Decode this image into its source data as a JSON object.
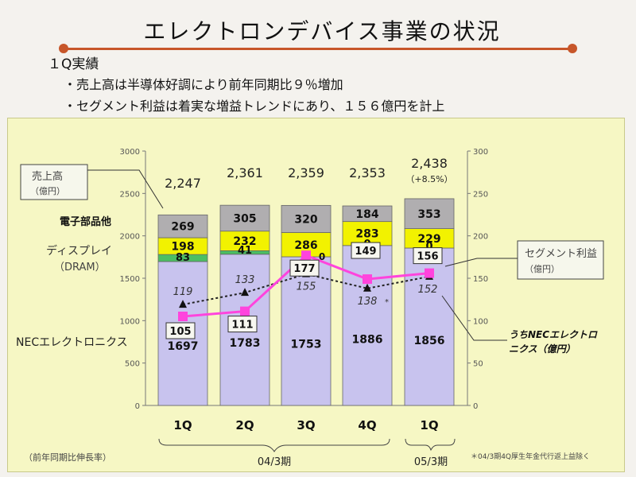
{
  "slide": {
    "title": "エレクトロンデバイス事業の状況",
    "summary_heading": "１Q実績",
    "bullets": [
      "・売上高は半導体好調により前年同期比９％増加",
      "・セグメント利益は着実な増益トレンドにあり、１５６億円を計上"
    ]
  },
  "chart_data": {
    "type": "bar",
    "stacked": true,
    "categories": [
      "1Q",
      "2Q",
      "3Q",
      "4Q",
      "1Q"
    ],
    "period_groups": [
      {
        "label": "04/3期",
        "categories": [
          "1Q",
          "2Q",
          "3Q",
          "4Q"
        ]
      },
      {
        "label": "05/3期",
        "categories": [
          "1Q"
        ]
      }
    ],
    "y_left": {
      "min": 0,
      "max": 3000,
      "ticks": [
        "0",
        "500",
        "1000",
        "1500",
        "2000",
        "2500",
        "3000"
      ]
    },
    "y_right": {
      "min": 0,
      "max": 300,
      "ticks": [
        "0",
        "50",
        "100",
        "150",
        "200",
        "250",
        "300"
      ]
    },
    "series": [
      {
        "name": "NECエレクトロニクス",
        "values": [
          1697,
          1783,
          1753,
          1886,
          1856
        ],
        "color": "#c8c3ee"
      },
      {
        "name": "",
        "values": [
          83,
          41,
          0,
          0,
          0
        ],
        "color": "#4bbf63"
      },
      {
        "name": "ディスプレイ（DRAM）",
        "values": [
          198,
          232,
          286,
          283,
          229
        ],
        "color": "#f2f200"
      },
      {
        "name": "電子部品他",
        "values": [
          269,
          305,
          320,
          184,
          353
        ],
        "color": "#b0aeb0"
      }
    ],
    "segment_labels": [
      [
        "1697",
        "83",
        "198",
        "269"
      ],
      [
        "1783",
        "41",
        "232",
        "305"
      ],
      [
        "1753",
        "",
        "286",
        "320"
      ],
      [
        "1886",
        "0",
        "283",
        "184"
      ],
      [
        "1856",
        "0",
        "229",
        "353"
      ]
    ],
    "third_quarter_zero_label": "0",
    "totals": [
      "2,247",
      "2,361",
      "2,359",
      "2,353",
      "2,438"
    ],
    "growth_note": "（+8.5%）",
    "segment_profit": {
      "name": "セグメント利益（億円）",
      "values": [
        105,
        111,
        177,
        149,
        156
      ],
      "labels": [
        "105",
        "111",
        "177",
        "149",
        "156"
      ],
      "color": "#ff44dd"
    },
    "nec_electronics_profit": {
      "name": "うちNECエレクトロニクス（億円）",
      "values": [
        119,
        133,
        155,
        138,
        152
      ],
      "labels": [
        "119",
        "133",
        "155",
        "138",
        "152"
      ]
    },
    "callouts": {
      "sales": [
        "売上高",
        "（億円）"
      ],
      "segment_profit": [
        "セグメント利益",
        "（億円）"
      ],
      "nec_profit": [
        "うちNECエレクトロ",
        "ニクス（億円）"
      ]
    },
    "row_labels": {
      "components": "電子部品他",
      "display": [
        "ディスプレイ",
        "（DRAM）"
      ],
      "nec": "NECエレクトロニクス"
    },
    "footnotes": {
      "growth": "（前年同期比伸長率）",
      "asterisk": "*",
      "right": "＊04/3期4Q厚生年金代行返上益除く"
    }
  }
}
